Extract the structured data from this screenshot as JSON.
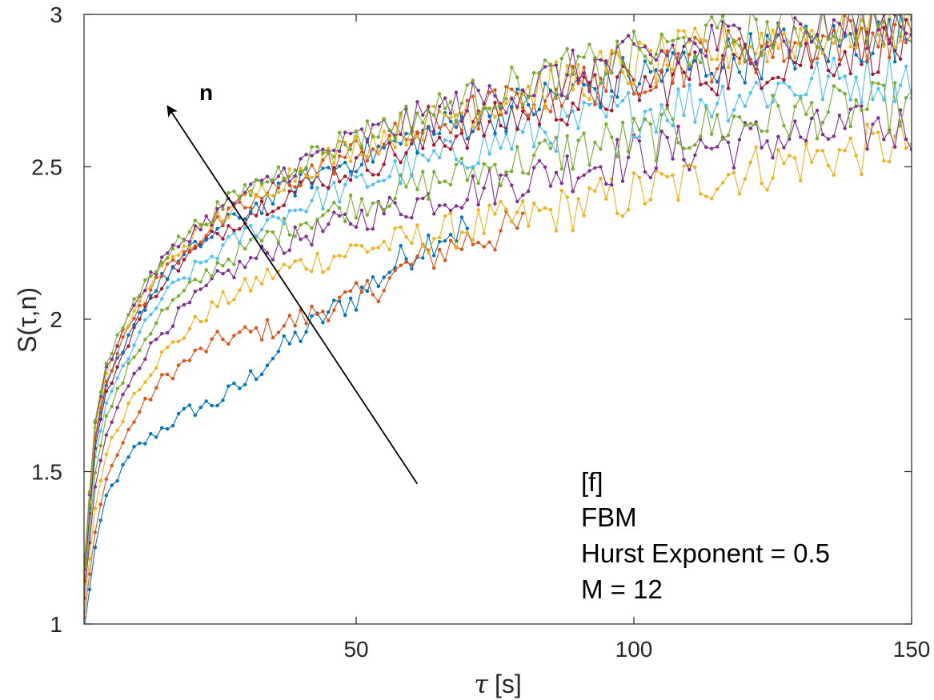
{
  "chart_data": {
    "type": "line",
    "xlabel": "[s]",
    "xlabel_symbol": "τ",
    "ylabel": "S(τ,n)",
    "xlim": [
      1,
      150
    ],
    "ylim": [
      1,
      3
    ],
    "xticks": [
      50,
      100,
      150
    ],
    "yticks": [
      1,
      1.5,
      2,
      2.5,
      3
    ],
    "grid": false,
    "box": true,
    "arrow": {
      "label": "n",
      "from": [
        61,
        1.46
      ],
      "to": [
        16,
        2.7
      ]
    },
    "annotation_lines": [
      "[f]",
      "FBM",
      "Hurst Exponent = 0.5",
      "M = 12"
    ],
    "markers": "dot",
    "series": [
      {
        "color": "#0072BD",
        "anchors": [
          [
            1,
            0.98
          ],
          [
            3,
            1.25
          ],
          [
            5,
            1.42
          ],
          [
            10,
            1.57
          ],
          [
            15,
            1.64
          ],
          [
            20,
            1.7
          ],
          [
            25,
            1.73
          ],
          [
            30,
            1.79
          ],
          [
            35,
            1.88
          ],
          [
            40,
            1.95
          ],
          [
            45,
            2.02
          ],
          [
            50,
            2.07
          ],
          [
            55,
            2.15
          ],
          [
            60,
            2.22
          ],
          [
            65,
            2.28
          ],
          [
            70,
            2.3
          ]
        ]
      },
      {
        "color": "#D95319",
        "anchors": [
          [
            1,
            1.02
          ],
          [
            3,
            1.3
          ],
          [
            5,
            1.48
          ],
          [
            10,
            1.67
          ],
          [
            15,
            1.8
          ],
          [
            20,
            1.87
          ],
          [
            25,
            1.93
          ],
          [
            30,
            1.95
          ],
          [
            35,
            1.97
          ],
          [
            40,
            2.0
          ],
          [
            45,
            2.04
          ],
          [
            50,
            2.07
          ],
          [
            55,
            2.12
          ],
          [
            60,
            2.18
          ],
          [
            65,
            2.22
          ],
          [
            70,
            2.26
          ],
          [
            75,
            2.28
          ],
          [
            80,
            2.3
          ]
        ]
      },
      {
        "color": "#EDB120",
        "anchors": [
          [
            1,
            1.05
          ],
          [
            3,
            1.38
          ],
          [
            5,
            1.56
          ],
          [
            10,
            1.76
          ],
          [
            15,
            1.88
          ],
          [
            20,
            1.97
          ],
          [
            25,
            2.05
          ],
          [
            30,
            2.1
          ],
          [
            35,
            2.15
          ],
          [
            40,
            2.18
          ],
          [
            45,
            2.2
          ],
          [
            50,
            2.23
          ],
          [
            60,
            2.26
          ],
          [
            70,
            2.3
          ],
          [
            80,
            2.33
          ],
          [
            90,
            2.37
          ],
          [
            100,
            2.41
          ],
          [
            110,
            2.45
          ],
          [
            120,
            2.49
          ],
          [
            130,
            2.52
          ],
          [
            140,
            2.55
          ],
          [
            150,
            2.58
          ]
        ]
      },
      {
        "color": "#7E2F8E",
        "anchors": [
          [
            1,
            1.08
          ],
          [
            3,
            1.45
          ],
          [
            5,
            1.62
          ],
          [
            10,
            1.83
          ],
          [
            15,
            1.96
          ],
          [
            20,
            2.05
          ],
          [
            25,
            2.13
          ],
          [
            30,
            2.18
          ],
          [
            35,
            2.23
          ],
          [
            40,
            2.27
          ],
          [
            45,
            2.3
          ],
          [
            50,
            2.33
          ],
          [
            60,
            2.38
          ],
          [
            70,
            2.42
          ],
          [
            80,
            2.46
          ],
          [
            90,
            2.5
          ],
          [
            100,
            2.53
          ],
          [
            110,
            2.56
          ],
          [
            120,
            2.58
          ],
          [
            130,
            2.6
          ],
          [
            140,
            2.62
          ],
          [
            150,
            2.63
          ]
        ]
      },
      {
        "color": "#77AC30",
        "anchors": [
          [
            1,
            1.1
          ],
          [
            3,
            1.5
          ],
          [
            5,
            1.68
          ],
          [
            10,
            1.88
          ],
          [
            15,
            2.02
          ],
          [
            20,
            2.1
          ],
          [
            25,
            2.18
          ],
          [
            30,
            2.23
          ],
          [
            35,
            2.28
          ],
          [
            40,
            2.32
          ],
          [
            45,
            2.35
          ],
          [
            50,
            2.38
          ],
          [
            60,
            2.43
          ],
          [
            70,
            2.48
          ],
          [
            80,
            2.52
          ],
          [
            90,
            2.56
          ],
          [
            100,
            2.59
          ],
          [
            110,
            2.62
          ],
          [
            120,
            2.65
          ],
          [
            130,
            2.67
          ],
          [
            140,
            2.69
          ],
          [
            150,
            2.7
          ]
        ]
      },
      {
        "color": "#4DBEEE",
        "anchors": [
          [
            1,
            1.12
          ],
          [
            3,
            1.55
          ],
          [
            5,
            1.72
          ],
          [
            10,
            1.92
          ],
          [
            15,
            2.07
          ],
          [
            20,
            2.15
          ],
          [
            25,
            2.22
          ],
          [
            30,
            2.28
          ],
          [
            35,
            2.33
          ],
          [
            40,
            2.37
          ],
          [
            45,
            2.41
          ],
          [
            50,
            2.44
          ],
          [
            60,
            2.5
          ],
          [
            70,
            2.55
          ],
          [
            80,
            2.6
          ],
          [
            90,
            2.64
          ],
          [
            100,
            2.68
          ],
          [
            110,
            2.71
          ],
          [
            120,
            2.74
          ],
          [
            130,
            2.77
          ],
          [
            140,
            2.79
          ],
          [
            150,
            2.8
          ]
        ]
      },
      {
        "color": "#A2142F",
        "anchors": [
          [
            1,
            1.14
          ],
          [
            3,
            1.58
          ],
          [
            5,
            1.76
          ],
          [
            10,
            1.97
          ],
          [
            15,
            2.12
          ],
          [
            20,
            2.21
          ],
          [
            25,
            2.28
          ],
          [
            30,
            2.34
          ],
          [
            35,
            2.39
          ],
          [
            40,
            2.43
          ],
          [
            45,
            2.47
          ],
          [
            50,
            2.5
          ],
          [
            60,
            2.56
          ],
          [
            70,
            2.62
          ],
          [
            80,
            2.67
          ],
          [
            90,
            2.72
          ],
          [
            100,
            2.76
          ],
          [
            110,
            2.8
          ],
          [
            120,
            2.83
          ],
          [
            130,
            2.86
          ],
          [
            140,
            2.88
          ],
          [
            150,
            2.9
          ]
        ]
      },
      {
        "color": "#0072BD",
        "anchors": [
          [
            1,
            1.15
          ],
          [
            3,
            1.6
          ],
          [
            5,
            1.78
          ],
          [
            10,
            1.99
          ],
          [
            15,
            2.13
          ],
          [
            20,
            2.22
          ],
          [
            25,
            2.29
          ],
          [
            30,
            2.35
          ],
          [
            35,
            2.4
          ],
          [
            40,
            2.45
          ],
          [
            45,
            2.49
          ],
          [
            50,
            2.53
          ],
          [
            60,
            2.59
          ],
          [
            70,
            2.65
          ],
          [
            80,
            2.7
          ],
          [
            90,
            2.75
          ],
          [
            100,
            2.79
          ],
          [
            110,
            2.83
          ],
          [
            120,
            2.86
          ],
          [
            130,
            2.89
          ],
          [
            140,
            2.91
          ],
          [
            150,
            2.93
          ]
        ]
      },
      {
        "color": "#D95319",
        "anchors": [
          [
            1,
            1.16
          ],
          [
            3,
            1.62
          ],
          [
            5,
            1.8
          ],
          [
            10,
            2.01
          ],
          [
            15,
            2.15
          ],
          [
            20,
            2.24
          ],
          [
            25,
            2.31
          ],
          [
            30,
            2.37
          ],
          [
            35,
            2.42
          ],
          [
            40,
            2.47
          ],
          [
            45,
            2.51
          ],
          [
            50,
            2.55
          ],
          [
            60,
            2.61
          ],
          [
            70,
            2.67
          ],
          [
            80,
            2.72
          ],
          [
            90,
            2.77
          ],
          [
            100,
            2.81
          ],
          [
            110,
            2.85
          ],
          [
            120,
            2.88
          ],
          [
            130,
            2.91
          ],
          [
            140,
            2.93
          ],
          [
            150,
            2.95
          ]
        ]
      },
      {
        "color": "#EDB120",
        "anchors": [
          [
            1,
            1.17
          ],
          [
            3,
            1.64
          ],
          [
            5,
            1.82
          ],
          [
            10,
            2.03
          ],
          [
            15,
            2.17
          ],
          [
            20,
            2.26
          ],
          [
            25,
            2.33
          ],
          [
            30,
            2.39
          ],
          [
            35,
            2.44
          ],
          [
            40,
            2.49
          ],
          [
            45,
            2.53
          ],
          [
            50,
            2.57
          ],
          [
            60,
            2.63
          ],
          [
            70,
            2.69
          ],
          [
            80,
            2.74
          ],
          [
            90,
            2.79
          ],
          [
            100,
            2.83
          ],
          [
            110,
            2.87
          ],
          [
            120,
            2.9
          ],
          [
            130,
            2.93
          ],
          [
            140,
            2.95
          ],
          [
            150,
            2.97
          ]
        ]
      },
      {
        "color": "#7E2F8E",
        "anchors": [
          [
            1,
            1.18
          ],
          [
            3,
            1.66
          ],
          [
            5,
            1.84
          ],
          [
            10,
            2.05
          ],
          [
            15,
            2.19
          ],
          [
            20,
            2.28
          ],
          [
            25,
            2.35
          ],
          [
            30,
            2.41
          ],
          [
            35,
            2.46
          ],
          [
            40,
            2.51
          ],
          [
            45,
            2.55
          ],
          [
            50,
            2.59
          ],
          [
            60,
            2.65
          ],
          [
            70,
            2.71
          ],
          [
            80,
            2.76
          ],
          [
            90,
            2.81
          ],
          [
            100,
            2.85
          ],
          [
            110,
            2.89
          ],
          [
            120,
            2.92
          ],
          [
            130,
            2.95
          ],
          [
            140,
            2.97
          ],
          [
            150,
            2.98
          ]
        ]
      },
      {
        "color": "#77AC30",
        "anchors": [
          [
            1,
            1.19
          ],
          [
            3,
            1.67
          ],
          [
            5,
            1.85
          ],
          [
            10,
            2.06
          ],
          [
            15,
            2.2
          ],
          [
            20,
            2.29
          ],
          [
            25,
            2.36
          ],
          [
            30,
            2.42
          ],
          [
            35,
            2.47
          ],
          [
            40,
            2.52
          ],
          [
            45,
            2.56
          ],
          [
            50,
            2.6
          ],
          [
            60,
            2.66
          ],
          [
            70,
            2.72
          ],
          [
            80,
            2.77
          ],
          [
            90,
            2.82
          ],
          [
            100,
            2.86
          ],
          [
            110,
            2.9
          ],
          [
            120,
            2.93
          ],
          [
            130,
            2.96
          ],
          [
            140,
            2.98
          ],
          [
            150,
            2.99
          ]
        ]
      }
    ]
  }
}
